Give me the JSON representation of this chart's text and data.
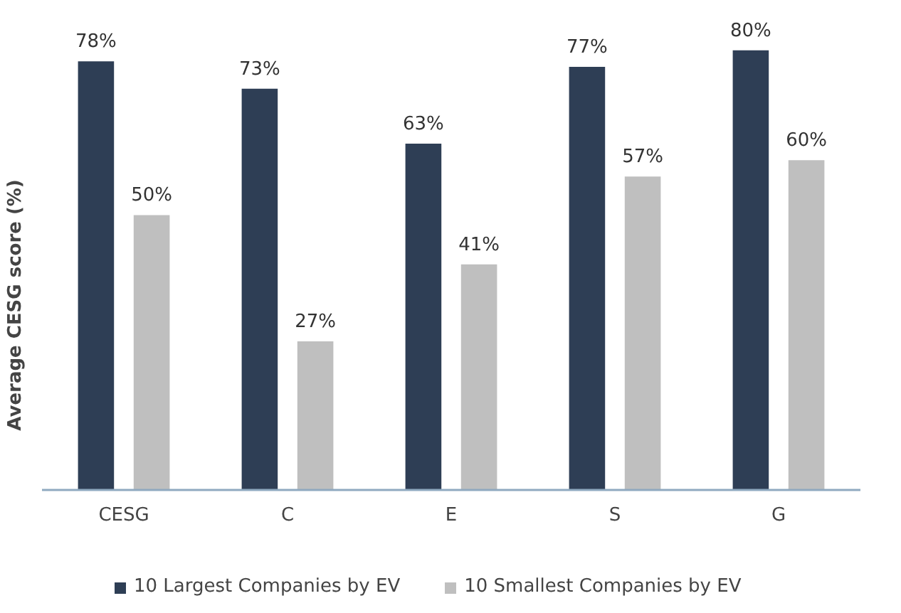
{
  "chart_data": {
    "type": "bar",
    "ylabel": "Average CESG score (%)",
    "categories": [
      "CESG",
      "C",
      "E",
      "S",
      "G"
    ],
    "tick_labels": "x",
    "grid": false,
    "legend": "bottom",
    "series": [
      {
        "name": "10 Largest Companies by EV",
        "color": "#2e3e55",
        "values": [
          78,
          73,
          63,
          77,
          80
        ],
        "value_labels": [
          "78%",
          "73%",
          "63%",
          "77%",
          "80%"
        ]
      },
      {
        "name": "10 Smallest Companies by EV",
        "color": "#bfbfbf",
        "values": [
          50,
          27,
          41,
          57,
          60
        ],
        "value_labels": [
          "50%",
          "27%",
          "41%",
          "57%",
          "60%"
        ]
      }
    ]
  }
}
